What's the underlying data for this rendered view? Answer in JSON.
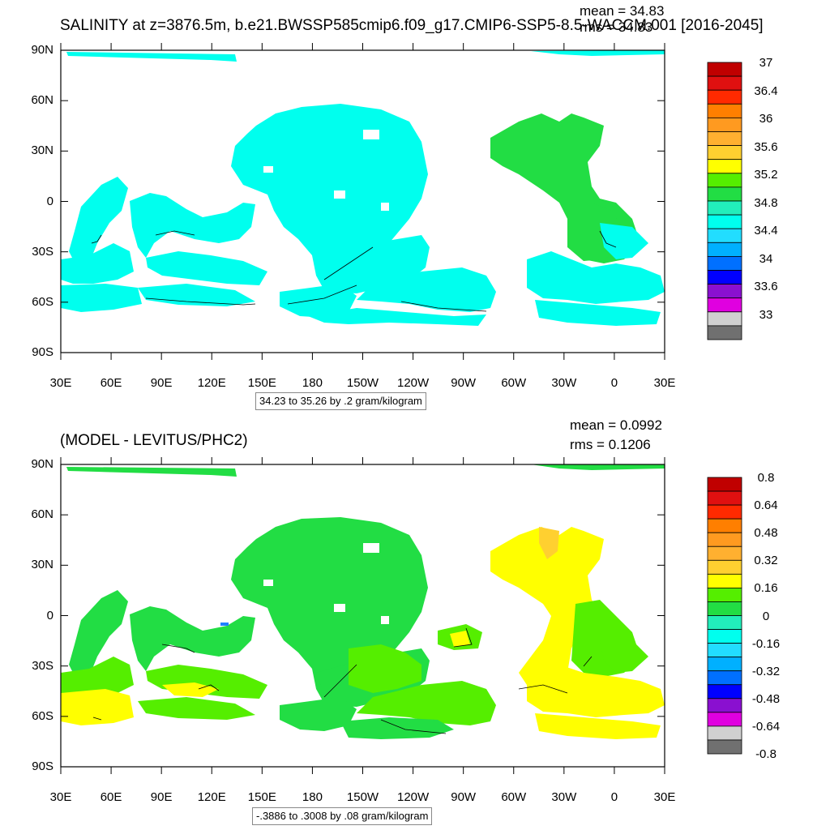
{
  "panels": [
    {
      "title": "SALINITY at z=3876.5m, b.e21.BWSSP585cmip6.f09_g17.CMIP6-SSP5-8.5-WACCM.001 [2016-2045]",
      "mean": "mean = 34.83",
      "rms": "rms = 34.83",
      "contour_info": "34.23 to 35.26 by .2 gram/kilogram",
      "colorbar_labels": [
        "37",
        "36.4",
        "36",
        "35.6",
        "35.2",
        "34.8",
        "34.4",
        "34",
        "33.6",
        "33"
      ]
    },
    {
      "title": "(MODEL - LEVITUS/PHC2)",
      "mean": "mean = 0.0992",
      "rms": "rms = 0.1206",
      "contour_info": "-.3886 to .3008 by .08 gram/kilogram",
      "colorbar_labels": [
        "0.8",
        "0.64",
        "0.48",
        "0.32",
        "0.16",
        "0",
        "-0.16",
        "-0.32",
        "-0.48",
        "-0.64",
        "-0.8"
      ]
    }
  ],
  "axes": {
    "lat_labels": [
      "90N",
      "60N",
      "30N",
      "0",
      "30S",
      "60S",
      "90S"
    ],
    "lon_labels": [
      "30E",
      "60E",
      "90E",
      "120E",
      "150E",
      "180",
      "150W",
      "120W",
      "90W",
      "60W",
      "30W",
      "0",
      "30E"
    ]
  },
  "colors": {
    "colorbar": [
      "#c00000",
      "#e01010",
      "#ff2a00",
      "#ff7f00",
      "#ff9a20",
      "#ffb030",
      "#ffd030",
      "#ffff00",
      "#55ee00",
      "#22dd44",
      "#22eebb",
      "#00ffee",
      "#22ddff",
      "#00b0ff",
      "#0070ff",
      "#0000ff",
      "#8a10d0",
      "#e000e0",
      "#d0d0d0",
      "#707070"
    ],
    "panel1_fill": "#00ffee",
    "panel1_north_fill": "#22dd44",
    "panel2_green": "#22dd44",
    "panel2_lightgreen": "#55ee00",
    "panel2_yellow": "#ffff00",
    "panel2_orange": "#ffd030"
  }
}
